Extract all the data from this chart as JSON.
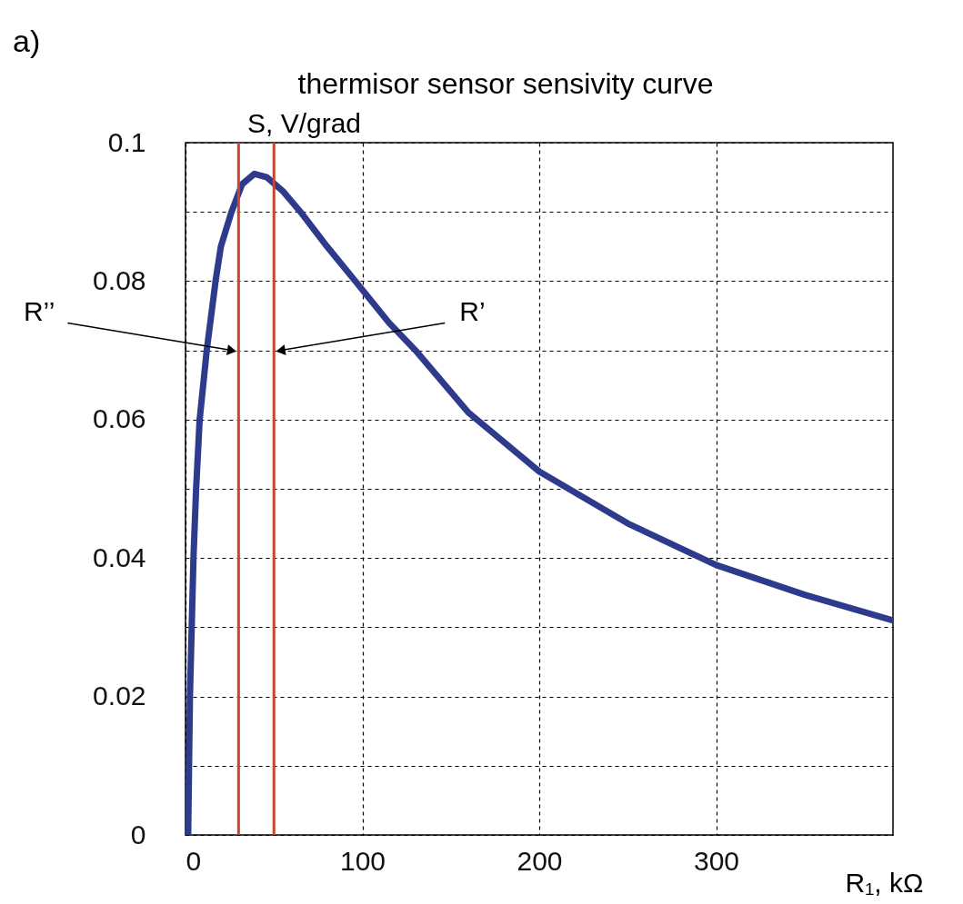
{
  "chart_data": {
    "type": "line",
    "title": "thermisor sensor sensivity curve",
    "ylabel": "S, V/grad",
    "xlabel": "R₁, kΩ",
    "x": [
      1.5,
      2,
      2.5,
      3.5,
      4.5,
      6,
      8,
      12,
      17,
      20,
      26,
      32,
      39,
      46,
      55,
      65,
      80,
      96,
      115,
      130,
      160,
      200,
      250,
      300,
      350,
      400
    ],
    "series": [
      {
        "color": "#2e3a8c",
        "values": [
          0,
          0.01,
          0.02,
          0.03,
          0.04,
          0.05,
          0.06,
          0.07,
          0.08,
          0.085,
          0.09,
          0.094,
          0.0955,
          0.095,
          0.093,
          0.09,
          0.085,
          0.08,
          0.074,
          0.07,
          0.061,
          0.0525,
          0.045,
          0.039,
          0.0347,
          0.031
        ]
      }
    ],
    "xlim": [
      0,
      400
    ],
    "xticks": [
      0,
      100,
      200,
      300
    ],
    "ylim": [
      0,
      0.1
    ],
    "yticks": [
      0,
      {
        "value": 0.01,
        "label": null
      },
      0.02,
      {
        "value": 0.03,
        "label": null
      },
      0.04,
      {
        "value": 0.05,
        "label": null
      },
      0.06,
      {
        "value": 0.07,
        "label": null
      },
      0.08,
      {
        "value": 0.09,
        "label": null
      },
      0.1
    ],
    "grid": true,
    "line_style": "solid",
    "marker": "none",
    "ref_lines": [
      {
        "axis": "x",
        "value": 30,
        "color": "#c8452f"
      },
      {
        "axis": "x",
        "value": 50,
        "color": "#c8452f"
      }
    ],
    "annotations": [
      "a)",
      {
        "text": "R’’",
        "x": 30,
        "y": 0.07
      },
      {
        "text": "R’",
        "x": 50,
        "y": 0.07
      }
    ]
  }
}
